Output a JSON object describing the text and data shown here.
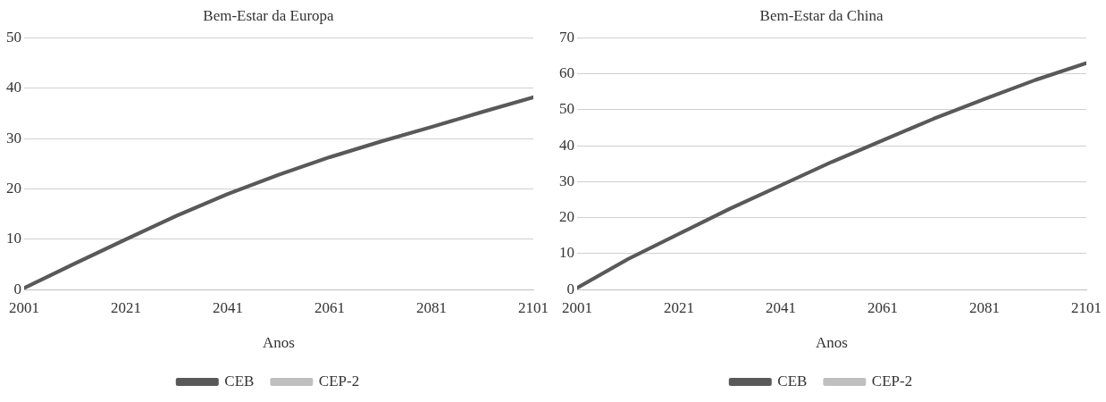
{
  "chart_data": [
    {
      "type": "line",
      "title": "Bem-Estar da Europa",
      "xlabel": "Anos",
      "x": [
        2001,
        2011,
        2021,
        2031,
        2041,
        2051,
        2061,
        2071,
        2081,
        2091,
        2101
      ],
      "xlim": [
        2001,
        2101
      ],
      "xticks": [
        2001,
        2021,
        2041,
        2061,
        2081,
        2101
      ],
      "ylim": [
        0,
        50
      ],
      "yticks": [
        0,
        10,
        20,
        30,
        40,
        50
      ],
      "grid": "y",
      "legend": "bottom",
      "marker": "none",
      "line_style": "solid",
      "series": [
        {
          "name": "CEB",
          "color": "#595959",
          "values": [
            0.3,
            5.2,
            10,
            14.7,
            19,
            22.8,
            26.3,
            29.4,
            32.3,
            35.3,
            38.2
          ]
        },
        {
          "name": "CEP-2",
          "color": "#bfbfbf",
          "values": [
            0.3,
            5.2,
            10,
            14.7,
            19,
            22.8,
            26.3,
            29.4,
            32.3,
            35.3,
            38.2
          ]
        }
      ]
    },
    {
      "type": "line",
      "title": "Bem-Estar da China",
      "xlabel": "Anos",
      "x": [
        2001,
        2011,
        2021,
        2031,
        2041,
        2051,
        2061,
        2071,
        2081,
        2091,
        2101
      ],
      "xlim": [
        2001,
        2101
      ],
      "xticks": [
        2001,
        2021,
        2041,
        2061,
        2081,
        2101
      ],
      "ylim": [
        0,
        70
      ],
      "yticks": [
        0,
        10,
        20,
        30,
        40,
        50,
        60,
        70
      ],
      "grid": "y",
      "legend": "bottom",
      "marker": "none",
      "line_style": "solid",
      "series": [
        {
          "name": "CEB",
          "color": "#595959",
          "values": [
            0.5,
            8.5,
            15.5,
            22.5,
            29,
            35.5,
            41.5,
            47.5,
            53,
            58.3,
            63
          ]
        },
        {
          "name": "CEP-2",
          "color": "#bfbfbf",
          "values": [
            0.5,
            8.5,
            15.5,
            22.5,
            29,
            35.5,
            41.5,
            47.5,
            53,
            58.3,
            63
          ]
        }
      ]
    }
  ]
}
